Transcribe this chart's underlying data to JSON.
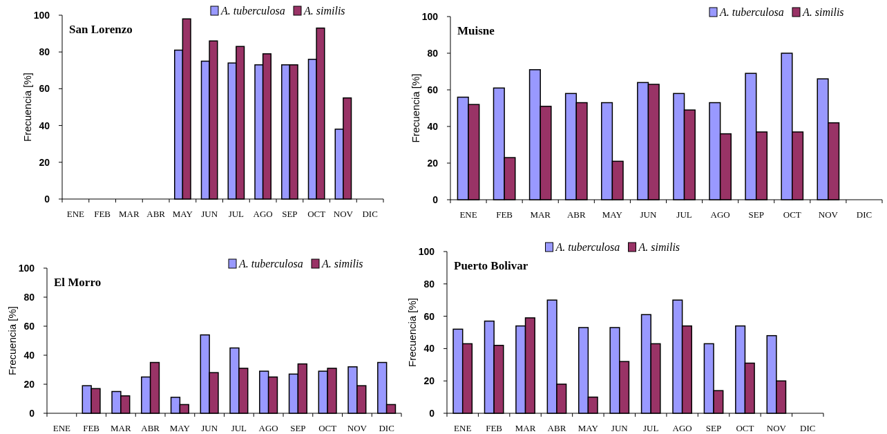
{
  "chart_data": [
    {
      "type": "bar",
      "title": "San Lorenzo",
      "ylabel": "Frecuencia [%]",
      "categories": [
        "ENE",
        "FEB",
        "MAR",
        "ABR",
        "MAY",
        "JUN",
        "JUL",
        "AGO",
        "SEP",
        "OCT",
        "NOV",
        "DIC"
      ],
      "ylim": [
        0,
        100
      ],
      "yticks": [
        0,
        20,
        40,
        60,
        80,
        100
      ],
      "legend": "top right",
      "series": [
        {
          "name": "A. tuberculosa",
          "color": "#9999ff",
          "values": [
            null,
            null,
            null,
            null,
            81,
            75,
            74,
            73,
            73,
            76,
            38,
            null
          ]
        },
        {
          "name": "A. similis",
          "color": "#993366",
          "values": [
            null,
            null,
            null,
            null,
            98,
            86,
            83,
            79,
            73,
            93,
            55,
            null
          ]
        }
      ]
    },
    {
      "type": "bar",
      "title": "Muisne",
      "ylabel": "Frecuencia [%]",
      "categories": [
        "ENE",
        "FEB",
        "MAR",
        "ABR",
        "MAY",
        "JUN",
        "JUL",
        "AGO",
        "SEP",
        "OCT",
        "NOV",
        "DIC"
      ],
      "ylim": [
        0,
        100
      ],
      "yticks": [
        0,
        20,
        40,
        60,
        80,
        100
      ],
      "legend": "top right",
      "series": [
        {
          "name": "A. tuberculosa",
          "color": "#9999ff",
          "values": [
            56,
            61,
            71,
            58,
            53,
            64,
            58,
            53,
            69,
            80,
            66,
            null
          ]
        },
        {
          "name": "A. similis",
          "color": "#993366",
          "values": [
            52,
            23,
            51,
            53,
            21,
            63,
            49,
            36,
            37,
            37,
            42,
            null
          ]
        }
      ]
    },
    {
      "type": "bar",
      "title": "El Morro",
      "ylabel": "Frecuencia [%]",
      "categories": [
        "ENE",
        "FEB",
        "MAR",
        "ABR",
        "MAY",
        "JUN",
        "JUL",
        "AGO",
        "SEP",
        "OCT",
        "NOV",
        "DIC"
      ],
      "ylim": [
        0,
        100
      ],
      "yticks": [
        0,
        20,
        40,
        60,
        80,
        100
      ],
      "legend": "top right",
      "series": [
        {
          "name": "A. tuberculosa",
          "color": "#9999ff",
          "values": [
            null,
            19,
            15,
            25,
            11,
            54,
            45,
            29,
            27,
            29,
            32,
            35
          ]
        },
        {
          "name": "A. similis",
          "color": "#993366",
          "values": [
            null,
            17,
            12,
            35,
            6,
            28,
            31,
            25,
            34,
            31,
            19,
            6
          ]
        }
      ]
    },
    {
      "type": "bar",
      "title": "Puerto Bolivar",
      "ylabel": "Frecuencia [%]",
      "categories": [
        "ENE",
        "FEB",
        "MAR",
        "ABR",
        "MAY",
        "JUN",
        "JUL",
        "AGO",
        "SEP",
        "OCT",
        "NOV",
        "DIC"
      ],
      "ylim": [
        0,
        100
      ],
      "yticks": [
        0,
        20,
        40,
        60,
        80,
        100
      ],
      "legend": "top",
      "series": [
        {
          "name": "A. tuberculosa",
          "color": "#9999ff",
          "values": [
            52,
            57,
            54,
            70,
            53,
            53,
            61,
            70,
            43,
            54,
            48,
            null
          ]
        },
        {
          "name": "A. similis",
          "color": "#993366",
          "values": [
            43,
            42,
            59,
            18,
            10,
            32,
            43,
            54,
            14,
            31,
            20,
            null
          ]
        }
      ]
    }
  ]
}
